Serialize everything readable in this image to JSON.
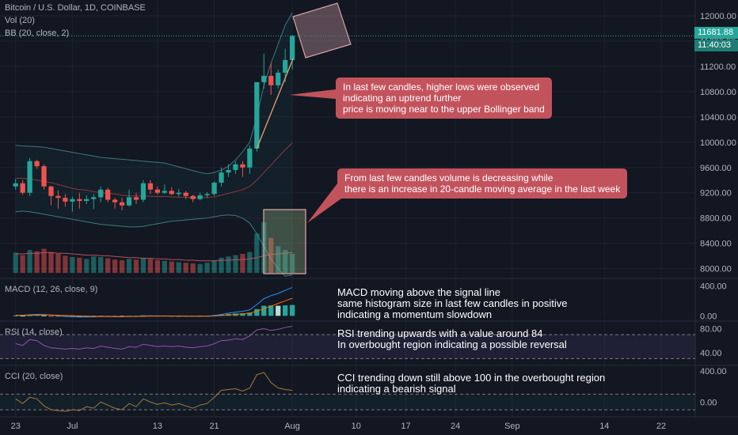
{
  "header": {
    "symbol_line": "Bitcoin / U.S. Dollar, 1D, COINBASE",
    "vol_label": "Vol (20)",
    "bb_label": "BB (20, close, 2)",
    "macd_label": "MACD (12, 26, close, 9)",
    "rsi_label": "RSI (14, close)",
    "cci_label": "CCI (20, close)"
  },
  "price_tag": {
    "value": "11681.88",
    "timer": "11:40:03"
  },
  "colors": {
    "bg": "#131722",
    "up": "#26a69a",
    "down": "#ef5350",
    "annot": "#c2535d",
    "bb_line": "#3c7a7e",
    "bb_mid": "#8a3a3f",
    "rsi": "#8e55a8",
    "cci": "#a37b3c"
  },
  "annotations": {
    "price_note": [
      "In last few candles, higher lows were observed",
      "indicating an uptrend further",
      "price is moving near to the upper Bollinger band"
    ],
    "volume_note": [
      "From last few candles volume is decreasing while",
      "there is an increase in 20-candle moving average in the last week"
    ],
    "macd_note": [
      "MACD moving above the signal line",
      "same histogram size in last few candles in positive",
      "indicating a momentum slowdown"
    ],
    "rsi_note": [
      "RSI trending upwards with a value around 84",
      "In overbought region indicating a possible reversal"
    ],
    "cci_note": [
      "CCI trending down still above 100 in the overbought region",
      "indicating a bearish signal"
    ]
  },
  "chart_data": {
    "type": "candlestick",
    "price_axis": {
      "ticks": [
        "12000.00",
        "11600.00",
        "11200.00",
        "10800.00",
        "10400.00",
        "10000.00",
        "9600.00",
        "9200.00",
        "8800.00",
        "8400.00",
        "8000.00"
      ],
      "ylim": [
        7870,
        12150
      ]
    },
    "x_axis": {
      "ticks": [
        {
          "label": "23",
          "day": 0
        },
        {
          "label": "Jul",
          "day": 8
        },
        {
          "label": "13",
          "day": 20
        },
        {
          "label": "21",
          "day": 28
        },
        {
          "label": "Aug",
          "day": 39
        },
        {
          "label": "10",
          "day": 48
        },
        {
          "label": "17",
          "day": 55
        },
        {
          "label": "24",
          "day": 62
        },
        {
          "label": "Sep",
          "day": 70
        },
        {
          "label": "14",
          "day": 83
        },
        {
          "label": "22",
          "day": 91
        }
      ],
      "xlim": [
        -2.2,
        95.8
      ]
    },
    "candles": [
      [
        9300,
        9420,
        9250,
        9350
      ],
      [
        9350,
        9400,
        9170,
        9200
      ],
      [
        9200,
        9750,
        9150,
        9700
      ],
      [
        9700,
        9720,
        9580,
        9620
      ],
      [
        9620,
        9650,
        9250,
        9300
      ],
      [
        9300,
        9310,
        9000,
        9150
      ],
      [
        9150,
        9240,
        8950,
        9120
      ],
      [
        9120,
        9180,
        8980,
        9060
      ],
      [
        9060,
        9140,
        8900,
        9100
      ],
      [
        9100,
        9200,
        8950,
        9070
      ],
      [
        9070,
        9160,
        9020,
        9100
      ],
      [
        9100,
        9180,
        8940,
        9130
      ],
      [
        9130,
        9300,
        9050,
        9250
      ],
      [
        9250,
        9280,
        9050,
        9090
      ],
      [
        9090,
        9120,
        8950,
        9050
      ],
      [
        9050,
        9120,
        8920,
        9000
      ],
      [
        9000,
        9250,
        8980,
        9130
      ],
      [
        9130,
        9200,
        9020,
        9090
      ],
      [
        9090,
        9400,
        9050,
        9350
      ],
      [
        9350,
        9400,
        9180,
        9250
      ],
      [
        9250,
        9300,
        9170,
        9200
      ],
      [
        9200,
        9330,
        9180,
        9230
      ],
      [
        9230,
        9290,
        9160,
        9180
      ],
      [
        9180,
        9260,
        9140,
        9200
      ],
      [
        9200,
        9230,
        9100,
        9150
      ],
      [
        9150,
        9170,
        9050,
        9100
      ],
      [
        9100,
        9200,
        9080,
        9160
      ],
      [
        9160,
        9210,
        9120,
        9180
      ],
      [
        9180,
        9380,
        9150,
        9360
      ],
      [
        9360,
        9600,
        9300,
        9520
      ],
      [
        9520,
        9650,
        9450,
        9560
      ],
      [
        9560,
        9700,
        9500,
        9650
      ],
      [
        9650,
        9700,
        9450,
        9600
      ],
      [
        9600,
        9950,
        9500,
        9900
      ],
      [
        9900,
        10950,
        9850,
        10950
      ],
      [
        10950,
        11400,
        10850,
        11050
      ],
      [
        11050,
        11250,
        10750,
        10900
      ],
      [
        10900,
        11150,
        10850,
        11100
      ],
      [
        11100,
        11480,
        10950,
        11300
      ],
      [
        11300,
        11700,
        11150,
        11682
      ]
    ],
    "bollinger": {
      "upper": [
        9950,
        9940,
        9935,
        9930,
        9920,
        9900,
        9880,
        9860,
        9840,
        9820,
        9800,
        9780,
        9760,
        9750,
        9740,
        9730,
        9720,
        9710,
        9700,
        9690,
        9680,
        9670,
        9640,
        9610,
        9580,
        9550,
        9520,
        9500,
        9520,
        9560,
        9620,
        9720,
        9850,
        10000,
        10400,
        10900,
        11250,
        11550,
        11850,
        12050
      ],
      "middle": [
        9430,
        9430,
        9420,
        9400,
        9380,
        9360,
        9330,
        9300,
        9270,
        9250,
        9240,
        9220,
        9200,
        9190,
        9180,
        9160,
        9150,
        9150,
        9150,
        9145,
        9140,
        9140,
        9135,
        9130,
        9130,
        9125,
        9125,
        9125,
        9135,
        9160,
        9190,
        9220,
        9250,
        9300,
        9400,
        9520,
        9640,
        9760,
        9880,
        9990
      ],
      "lower": [
        8900,
        8910,
        8900,
        8880,
        8860,
        8840,
        8820,
        8800,
        8780,
        8760,
        8740,
        8720,
        8700,
        8690,
        8680,
        8670,
        8660,
        8660,
        8670,
        8690,
        8710,
        8730,
        8750,
        8760,
        8770,
        8780,
        8790,
        8800,
        8820,
        8840,
        8850,
        8840,
        8800,
        8720,
        8550,
        8350,
        8150,
        8000,
        7880,
        7900
      ]
    },
    "volume": {
      "values": [
        0.32,
        0.28,
        0.36,
        0.34,
        0.38,
        0.33,
        0.3,
        0.27,
        0.25,
        0.24,
        0.22,
        0.26,
        0.25,
        0.23,
        0.21,
        0.2,
        0.22,
        0.21,
        0.24,
        0.22,
        0.2,
        0.19,
        0.18,
        0.17,
        0.16,
        0.15,
        0.14,
        0.16,
        0.2,
        0.24,
        0.26,
        0.28,
        0.3,
        0.33,
        0.62,
        0.8,
        0.55,
        0.42,
        0.36,
        0.3
      ],
      "ma": [
        0.3,
        0.3,
        0.31,
        0.31,
        0.32,
        0.32,
        0.31,
        0.31,
        0.3,
        0.29,
        0.28,
        0.28,
        0.27,
        0.27,
        0.26,
        0.25,
        0.24,
        0.24,
        0.23,
        0.23,
        0.22,
        0.22,
        0.21,
        0.21,
        0.2,
        0.2,
        0.19,
        0.19,
        0.19,
        0.2,
        0.2,
        0.21,
        0.21,
        0.22,
        0.24,
        0.27,
        0.29,
        0.3,
        0.31,
        0.32
      ]
    },
    "macd": {
      "ticks": [
        "400.00",
        "0.00"
      ],
      "ylim": [
        -60,
        480
      ],
      "macd": [
        10,
        8,
        15,
        20,
        18,
        10,
        0,
        -8,
        -12,
        -15,
        -15,
        -14,
        -10,
        -10,
        -12,
        -12,
        -8,
        -8,
        0,
        0,
        0,
        0,
        -2,
        -3,
        -5,
        -6,
        -5,
        -4,
        5,
        20,
        35,
        50,
        60,
        80,
        150,
        230,
        270,
        300,
        340,
        380
      ],
      "signal": [
        5,
        6,
        8,
        10,
        12,
        11,
        9,
        5,
        2,
        -2,
        -5,
        -7,
        -8,
        -8,
        -9,
        -10,
        -9,
        -9,
        -7,
        -5,
        -4,
        -3,
        -3,
        -3,
        -3,
        -4,
        -4,
        -4,
        -2,
        3,
        10,
        18,
        26,
        37,
        60,
        95,
        130,
        165,
        200,
        235
      ],
      "hist": [
        5,
        2,
        7,
        10,
        6,
        -1,
        -9,
        -13,
        -14,
        -13,
        -10,
        -7,
        -2,
        -2,
        -3,
        -2,
        1,
        1,
        7,
        5,
        4,
        3,
        1,
        0,
        -2,
        -2,
        -1,
        0,
        7,
        17,
        25,
        32,
        34,
        43,
        90,
        135,
        140,
        135,
        140,
        145
      ]
    },
    "rsi": {
      "ticks": [
        "80.00",
        "40.00"
      ],
      "ylim": [
        20,
        90
      ],
      "bands": [
        70,
        30
      ],
      "values": [
        55,
        52,
        62,
        60,
        52,
        48,
        47,
        46,
        47,
        46,
        48,
        47,
        51,
        49,
        47,
        46,
        50,
        49,
        54,
        52,
        50,
        51,
        50,
        51,
        49,
        48,
        50,
        51,
        55,
        60,
        61,
        63,
        62,
        68,
        78,
        80,
        77,
        79,
        82,
        84
      ]
    },
    "cci": {
      "ticks": [
        "400.00",
        "0.00"
      ],
      "ylim": [
        -150,
        450
      ],
      "bands": [
        100,
        -100
      ],
      "values": [
        40,
        -20,
        60,
        40,
        -50,
        -100,
        -110,
        -120,
        -100,
        -110,
        -60,
        -80,
        0,
        -40,
        -80,
        -100,
        -20,
        -60,
        40,
        0,
        -30,
        -10,
        -40,
        -20,
        -50,
        -80,
        -40,
        -20,
        60,
        150,
        160,
        170,
        140,
        180,
        350,
        380,
        250,
        180,
        160,
        150
      ]
    }
  }
}
